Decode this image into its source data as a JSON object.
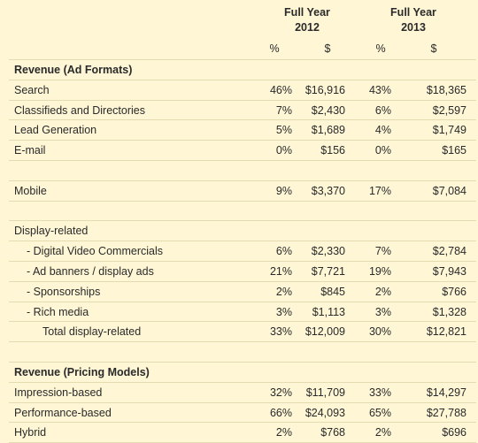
{
  "header": {
    "years": [
      {
        "line1": "Full Year",
        "line2": "2012"
      },
      {
        "line1": "Full Year",
        "line2": "2013"
      }
    ],
    "units": [
      "%",
      "$",
      "%",
      "$"
    ]
  },
  "rows": [
    {
      "label": "Revenue (Ad Formats)",
      "style": "section",
      "values": [
        "",
        "",
        "",
        ""
      ]
    },
    {
      "label": "Search",
      "style": "normal",
      "values": [
        "46%",
        "$16,916",
        "43%",
        "$18,365"
      ]
    },
    {
      "label": "Classifieds and Directories",
      "style": "normal",
      "values": [
        "7%",
        "$2,430",
        "6%",
        "$2,597"
      ]
    },
    {
      "label": "Lead Generation",
      "style": "normal",
      "values": [
        "5%",
        "$1,689",
        "4%",
        "$1,749"
      ]
    },
    {
      "label": "E-mail",
      "style": "normal",
      "values": [
        "0%",
        "$156",
        "0%",
        "$165"
      ]
    },
    {
      "label": "",
      "style": "blank",
      "values": [
        "",
        "",
        "",
        ""
      ]
    },
    {
      "label": "Mobile",
      "style": "normal",
      "values": [
        "9%",
        "$3,370",
        "17%",
        "$7,084"
      ]
    },
    {
      "label": "",
      "style": "blank",
      "values": [
        "",
        "",
        "",
        ""
      ]
    },
    {
      "label": "Display-related",
      "style": "normal",
      "values": [
        "",
        "",
        "",
        ""
      ]
    },
    {
      "label": "- Digital Video Commercials",
      "style": "indent1",
      "values": [
        "6%",
        "$2,330",
        "7%",
        "$2,784"
      ]
    },
    {
      "label": "- Ad banners / display ads",
      "style": "indent1",
      "values": [
        "21%",
        "$7,721",
        "19%",
        "$7,943"
      ]
    },
    {
      "label": "- Sponsorships",
      "style": "indent1",
      "values": [
        "2%",
        "$845",
        "2%",
        "$766"
      ]
    },
    {
      "label": "- Rich media",
      "style": "indent1",
      "values": [
        "3%",
        "$1,113",
        "3%",
        "$1,328"
      ]
    },
    {
      "label": "Total display-related",
      "style": "indent2",
      "values": [
        "33%",
        "$12,009",
        "30%",
        "$12,821"
      ]
    },
    {
      "label": "",
      "style": "blank",
      "values": [
        "",
        "",
        "",
        ""
      ]
    },
    {
      "label": "Revenue (Pricing Models)",
      "style": "section",
      "values": [
        "",
        "",
        "",
        ""
      ]
    },
    {
      "label": "Impression-based",
      "style": "normal",
      "values": [
        "32%",
        "$11,709",
        "33%",
        "$14,297"
      ]
    },
    {
      "label": "Performance-based",
      "style": "normal",
      "values": [
        "66%",
        "$24,093",
        "65%",
        "$27,788"
      ]
    },
    {
      "label": "Hybrid",
      "style": "normal",
      "values": [
        "2%",
        "$768",
        "2%",
        "$696"
      ]
    }
  ]
}
